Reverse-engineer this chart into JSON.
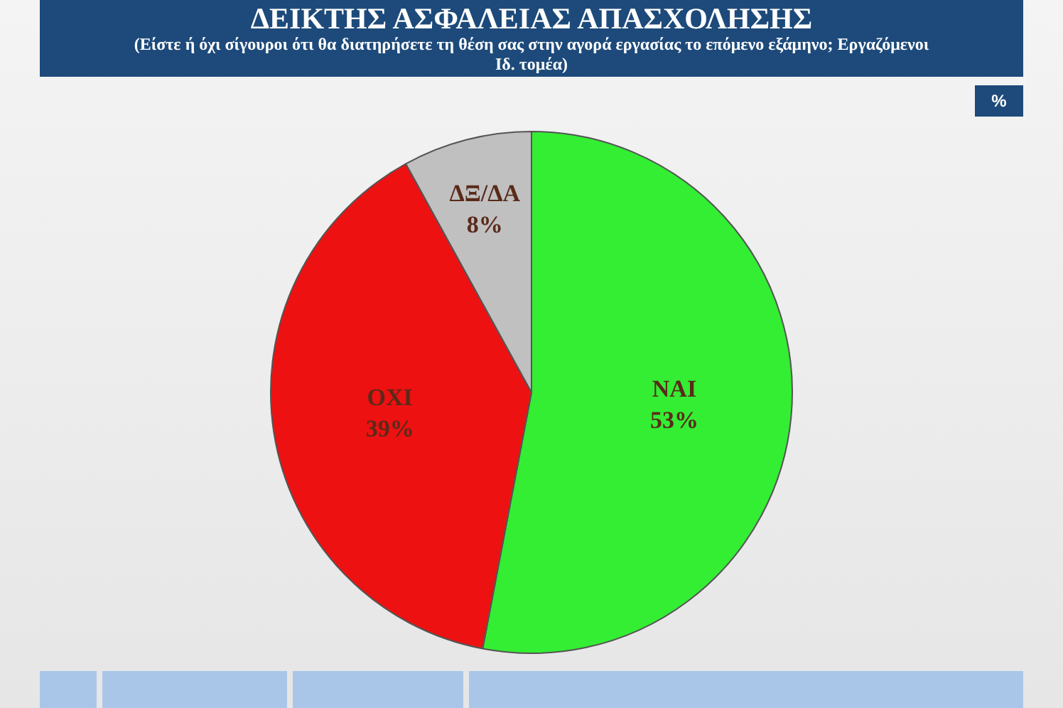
{
  "chart_data": {
    "type": "pie",
    "title": "ΔΕΙΚΤΗΣ ΑΣΦΑΛΕΙΑΣ ΑΠΑΣΧΟΛΗΣΗΣ",
    "subtitle": "(Είστε ή όχι σίγουροι ότι θα διατηρήσετε τη θέση σας στην αγορά εργασίας το επόμενο εξάμηνο; Εργαζόμενοι Ιδ. τομέα)",
    "categories": [
      "ΝΑΙ",
      "ΟΧΙ",
      "ΔΞ/ΔΑ"
    ],
    "values": [
      53,
      39,
      8
    ],
    "colors": [
      "#33ee33",
      "#ee1111",
      "#c0c0c0"
    ],
    "value_labels": [
      "53%",
      "39%",
      "8%"
    ],
    "annotations": [
      "%"
    ],
    "legend": false
  }
}
